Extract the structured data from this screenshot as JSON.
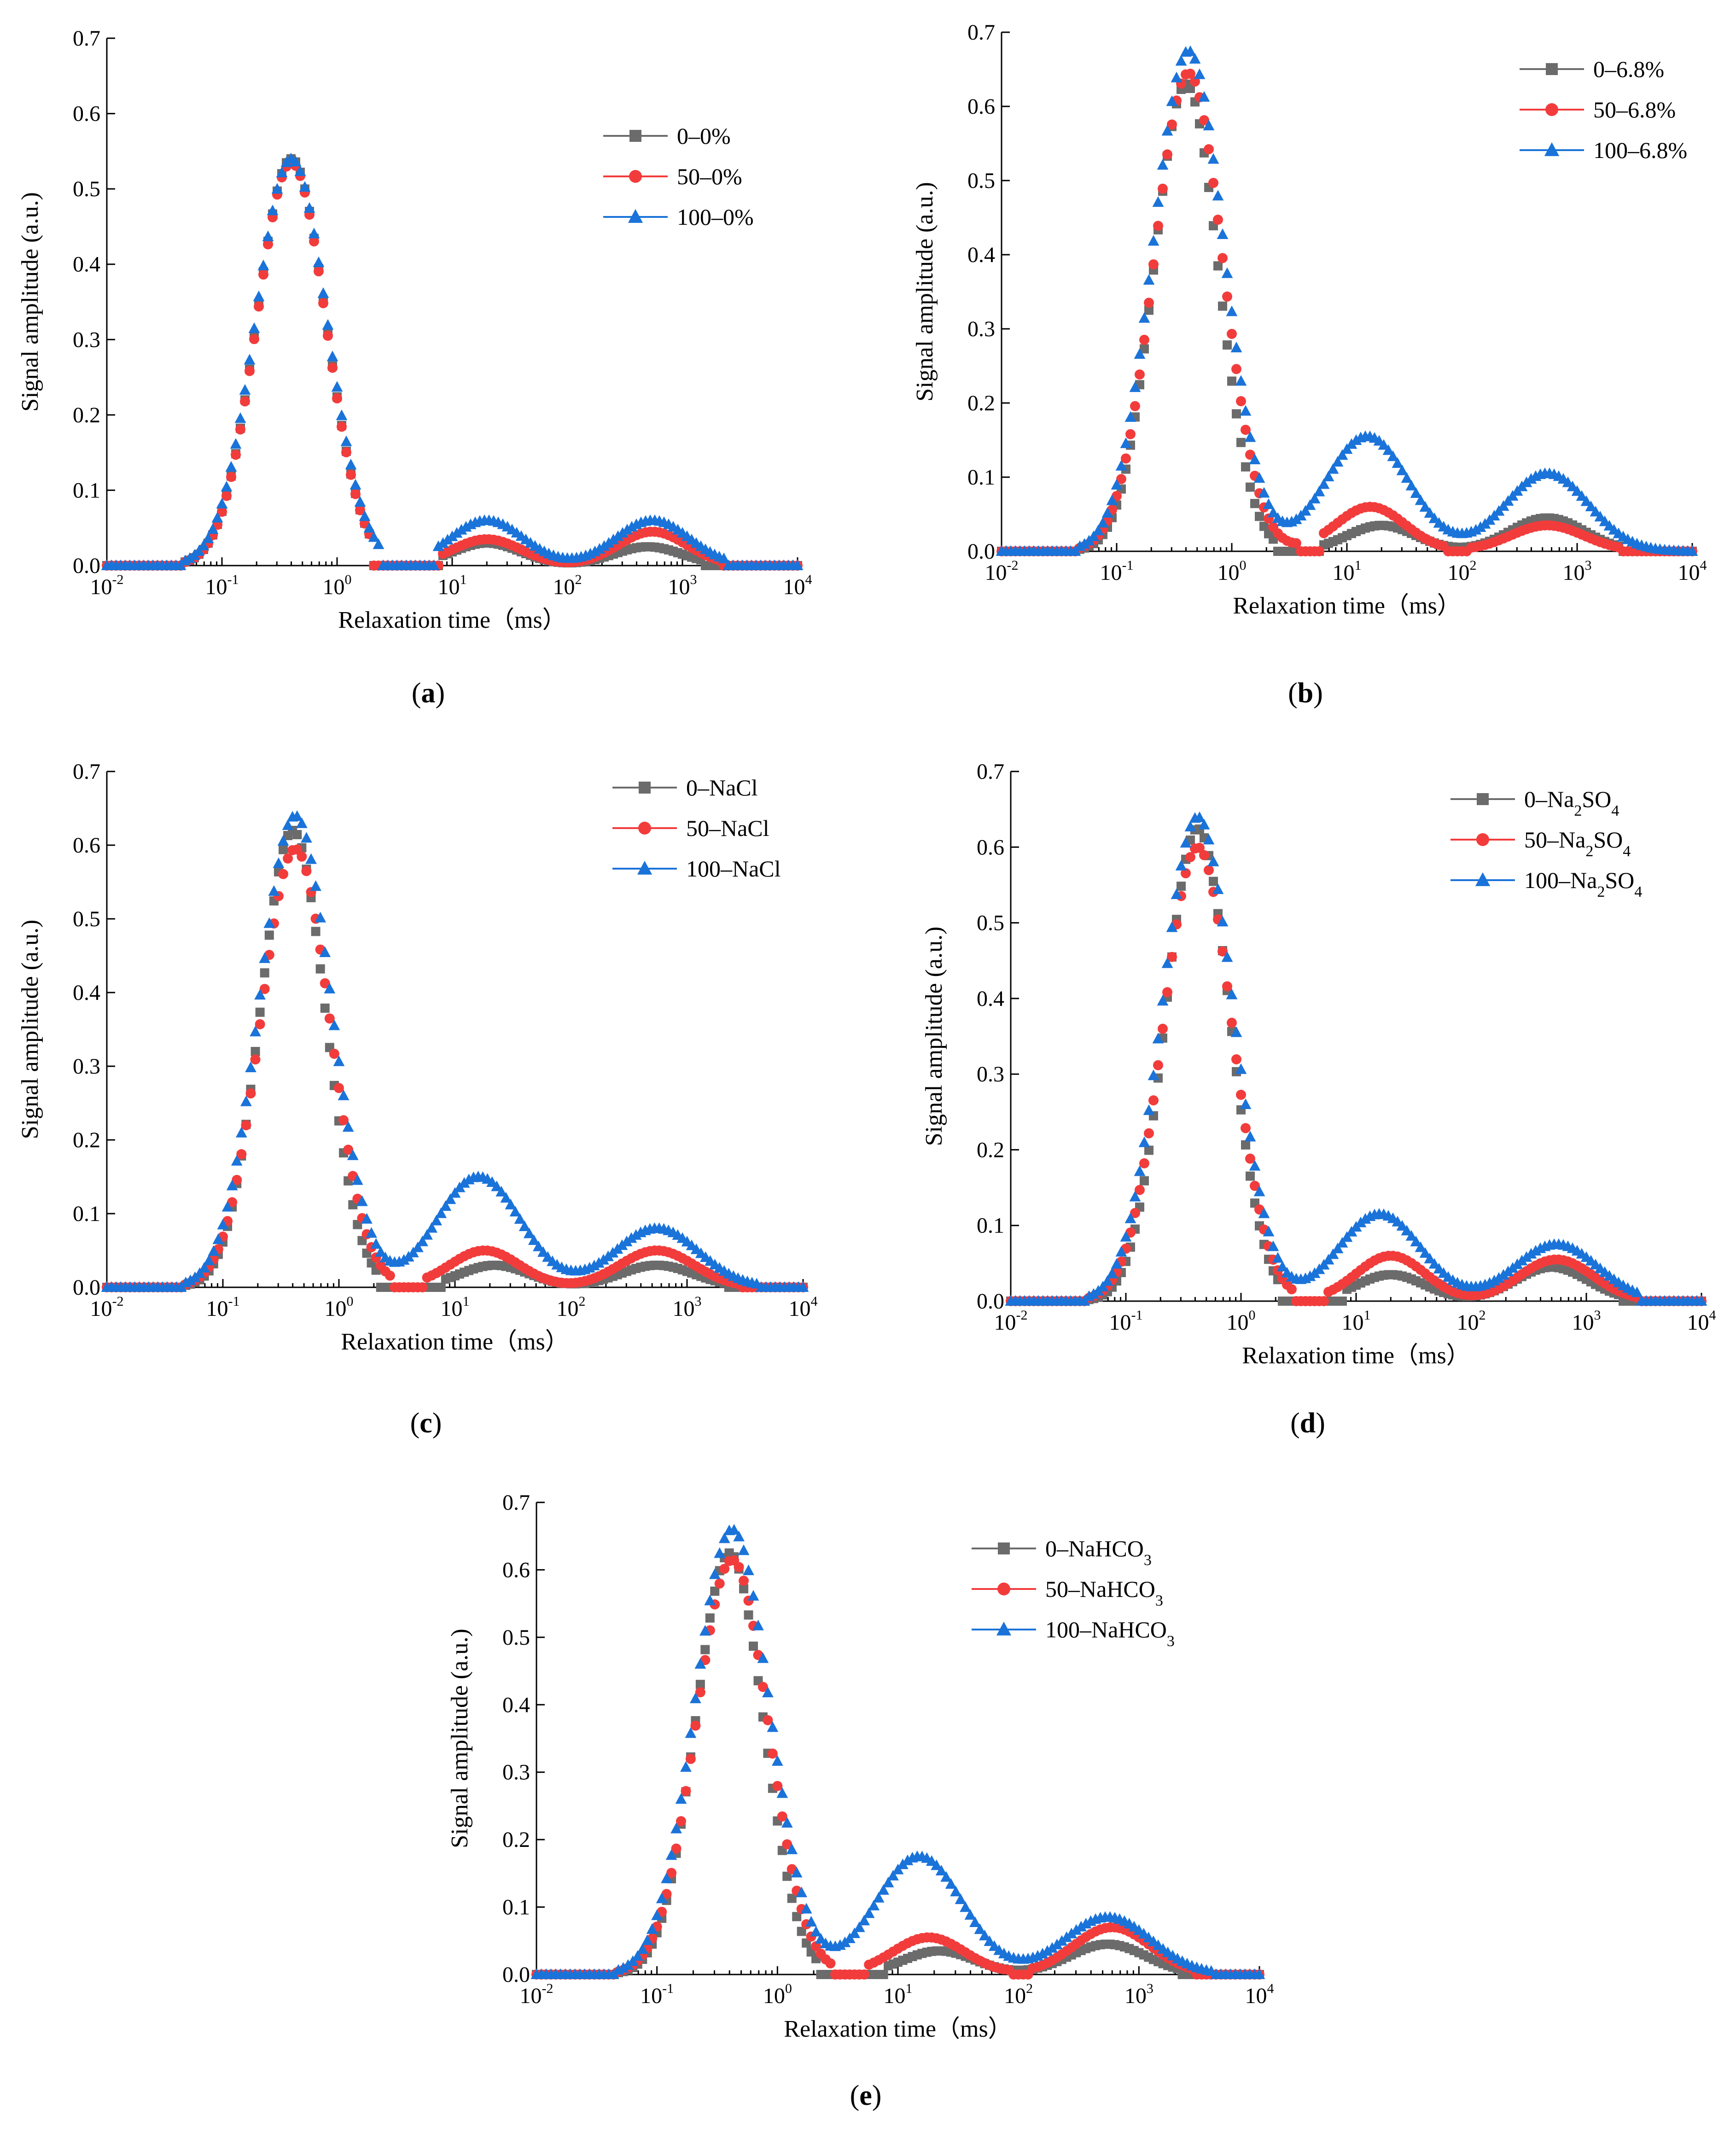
{
  "figure": {
    "xlabel": "Relaxation time（ms）",
    "ylabel": "Signal amplitude (a.u.)",
    "colors": {
      "s0": "#6b6b6b",
      "s50": "#f23c3c",
      "s100": "#1a73d9"
    },
    "markers": {
      "s0": "square",
      "s50": "circle",
      "s100": "triangle"
    }
  },
  "chart_data": [
    {
      "type": "scatter",
      "panel": "(a)",
      "panel_letter": "a",
      "x_scale": "log",
      "xlim": [
        0.01,
        10000
      ],
      "x_ticks": [
        {
          "base": "10",
          "exp": "-2"
        },
        {
          "base": "10",
          "exp": "-1"
        },
        {
          "base": "10",
          "exp": "0"
        },
        {
          "base": "10",
          "exp": "1"
        },
        {
          "base": "10",
          "exp": "2"
        },
        {
          "base": "10",
          "exp": "3"
        },
        {
          "base": "10",
          "exp": "4"
        }
      ],
      "ylim": [
        0,
        0.7
      ],
      "y_ticks": [
        "0.0",
        "0.1",
        "0.2",
        "0.3",
        "0.4",
        "0.5",
        "0.6",
        "0.7"
      ],
      "xlabel": "Relaxation time（ms）",
      "ylabel": "Signal amplitude (a.u.)",
      "legend_position": "top-right",
      "series": [
        {
          "name": "0–0%",
          "name_main": "0–0%",
          "name_sub": "",
          "name_tail": "",
          "color": "#6b6b6b",
          "marker": "square",
          "peaks": [
            {
              "center": 0.4,
              "amp": 0.54,
              "w": 0.3
            },
            {
              "center": 20,
              "amp": 0.03,
              "w": 0.3
            },
            {
              "center": 500,
              "amp": 0.025,
              "w": 0.3
            }
          ],
          "lo": 0.045,
          "hi": 1500,
          "cuts": [
            [
              2.0,
              8
            ]
          ]
        },
        {
          "name": "50–0%",
          "name_main": "50–0%",
          "name_sub": "",
          "name_tail": "",
          "color": "#f23c3c",
          "marker": "circle",
          "peaks": [
            {
              "center": 0.4,
              "amp": 0.535,
              "w": 0.3
            },
            {
              "center": 20,
              "amp": 0.035,
              "w": 0.3
            },
            {
              "center": 550,
              "amp": 0.045,
              "w": 0.3
            }
          ],
          "lo": 0.045,
          "hi": 2200,
          "cuts": [
            [
              2.0,
              8
            ]
          ]
        },
        {
          "name": "100–0%",
          "name_main": "100–0%",
          "name_sub": "",
          "name_tail": "",
          "color": "#1a73d9",
          "marker": "triangle",
          "peaks": [
            {
              "center": 0.4,
              "amp": 0.54,
              "w": 0.31
            },
            {
              "center": 20,
              "amp": 0.06,
              "w": 0.32
            },
            {
              "center": 550,
              "amp": 0.06,
              "w": 0.32
            }
          ],
          "lo": 0.045,
          "hi": 2500,
          "cuts": [
            [
              2.4,
              7
            ]
          ]
        }
      ]
    },
    {
      "type": "scatter",
      "panel": "(b)",
      "panel_letter": "b",
      "x_scale": "log",
      "xlim": [
        0.01,
        10000
      ],
      "x_ticks": [
        {
          "base": "10",
          "exp": "-2"
        },
        {
          "base": "10",
          "exp": "-1"
        },
        {
          "base": "10",
          "exp": "0"
        },
        {
          "base": "10",
          "exp": "1"
        },
        {
          "base": "10",
          "exp": "2"
        },
        {
          "base": "10",
          "exp": "3"
        },
        {
          "base": "10",
          "exp": "4"
        }
      ],
      "ylim": [
        0,
        0.7
      ],
      "y_ticks": [
        "0.0",
        "0.1",
        "0.2",
        "0.3",
        "0.4",
        "0.5",
        "0.6",
        "0.7"
      ],
      "xlabel": "Relaxation time（ms）",
      "ylabel": "Signal amplitude (a.u.)",
      "legend_position": "top-right",
      "series": [
        {
          "name": "0–6.8%",
          "name_main": "0–6.8%",
          "name_sub": "",
          "name_tail": "",
          "color": "#6b6b6b",
          "marker": "square",
          "peaks": [
            {
              "center": 0.4,
              "amp": 0.63,
              "w": 0.28
            },
            {
              "center": 20,
              "amp": 0.035,
              "w": 0.3
            },
            {
              "center": 550,
              "amp": 0.045,
              "w": 0.32
            }
          ],
          "lo": 0.045,
          "hi": 2500,
          "cuts": [
            [
              2.3,
              6
            ]
          ]
        },
        {
          "name": "50–6.8%",
          "name_main": "50–6.8%",
          "name_sub": "",
          "name_tail": "",
          "color": "#f23c3c",
          "marker": "circle",
          "peaks": [
            {
              "center": 0.42,
              "amp": 0.645,
              "w": 0.3
            },
            {
              "center": 16,
              "amp": 0.06,
              "w": 0.3
            },
            {
              "center": 550,
              "amp": 0.035,
              "w": 0.32
            }
          ],
          "lo": 0.045,
          "hi": 2500,
          "cuts": [
            [
              3.8,
              6
            ],
            [
              70,
              120
            ]
          ]
        },
        {
          "name": "100–6.8%",
          "name_main": "100–6.8%",
          "name_sub": "",
          "name_tail": "",
          "color": "#1a73d9",
          "marker": "triangle",
          "peaks": [
            {
              "center": 0.42,
              "amp": 0.675,
              "w": 0.31
            },
            {
              "center": 15,
              "amp": 0.155,
              "w": 0.36
            },
            {
              "center": 550,
              "amp": 0.105,
              "w": 0.36
            }
          ],
          "lo": 0.045,
          "hi": 9000,
          "cuts": []
        }
      ]
    },
    {
      "type": "scatter",
      "panel": "(c)",
      "panel_letter": "c",
      "x_scale": "log",
      "xlim": [
        0.01,
        10000
      ],
      "x_ticks": [
        {
          "base": "10",
          "exp": "-2"
        },
        {
          "base": "10",
          "exp": "-1"
        },
        {
          "base": "10",
          "exp": "0"
        },
        {
          "base": "10",
          "exp": "1"
        },
        {
          "base": "10",
          "exp": "2"
        },
        {
          "base": "10",
          "exp": "3"
        },
        {
          "base": "10",
          "exp": "4"
        }
      ],
      "ylim": [
        0,
        0.7
      ],
      "y_ticks": [
        "0.0",
        "0.1",
        "0.2",
        "0.3",
        "0.4",
        "0.5",
        "0.6",
        "0.7"
      ],
      "xlabel": "Relaxation time（ms）",
      "ylabel": "Signal amplitude (a.u.)",
      "legend_position": "top-right",
      "series": [
        {
          "name": "0–NaCl",
          "name_main": "0–NaCl",
          "name_sub": "",
          "name_tail": "",
          "color": "#6b6b6b",
          "marker": "square",
          "peaks": [
            {
              "center": 0.4,
              "amp": 0.62,
              "w": 0.28
            },
            {
              "center": 22,
              "amp": 0.03,
              "w": 0.3
            },
            {
              "center": 550,
              "amp": 0.03,
              "w": 0.32
            }
          ],
          "lo": 0.045,
          "hi": 2200,
          "cuts": [
            [
              2.2,
              8
            ]
          ]
        },
        {
          "name": "50–NaCl",
          "name_main": "50–NaCl",
          "name_sub": "",
          "name_tail": "",
          "color": "#f23c3c",
          "marker": "circle",
          "peaks": [
            {
              "center": 0.42,
              "amp": 0.595,
              "w": 0.3
            },
            {
              "center": 18,
              "amp": 0.05,
              "w": 0.3
            },
            {
              "center": 550,
              "amp": 0.05,
              "w": 0.32
            }
          ],
          "lo": 0.045,
          "hi": 2800,
          "cuts": [
            [
              2.8,
              5.5
            ]
          ]
        },
        {
          "name": "100–NaCl",
          "name_main": "100–NaCl",
          "name_sub": "",
          "name_tail": "",
          "color": "#1a73d9",
          "marker": "triangle",
          "peaks": [
            {
              "center": 0.42,
              "amp": 0.64,
              "w": 0.31
            },
            {
              "center": 16,
              "amp": 0.15,
              "w": 0.36
            },
            {
              "center": 550,
              "amp": 0.08,
              "w": 0.36
            }
          ],
          "lo": 0.045,
          "hi": 4000,
          "cuts": []
        }
      ]
    },
    {
      "type": "scatter",
      "panel": "(d)",
      "panel_letter": "d",
      "x_scale": "log",
      "xlim": [
        0.01,
        10000
      ],
      "x_ticks": [
        {
          "base": "10",
          "exp": "-2"
        },
        {
          "base": "10",
          "exp": "-1"
        },
        {
          "base": "10",
          "exp": "0"
        },
        {
          "base": "10",
          "exp": "1"
        },
        {
          "base": "10",
          "exp": "2"
        },
        {
          "base": "10",
          "exp": "3"
        },
        {
          "base": "10",
          "exp": "4"
        }
      ],
      "ylim": [
        0,
        0.7
      ],
      "y_ticks": [
        "0.0",
        "0.1",
        "0.2",
        "0.3",
        "0.4",
        "0.5",
        "0.6",
        "0.7"
      ],
      "xlabel": "Relaxation time（ms）",
      "ylabel": "Signal amplitude (a.u.)",
      "legend_position": "top-right",
      "series": [
        {
          "name": "0–Na2SO4",
          "name_main": "0–Na",
          "name_sub": "2",
          "name_tail": "SO",
          "name_sub2": "4",
          "color": "#6b6b6b",
          "marker": "square",
          "peaks": [
            {
              "center": 0.42,
              "amp": 0.625,
              "w": 0.28
            },
            {
              "center": 20,
              "amp": 0.035,
              "w": 0.3
            },
            {
              "center": 500,
              "amp": 0.045,
              "w": 0.32
            }
          ],
          "lo": 0.045,
          "hi": 2000,
          "cuts": [
            [
              2.2,
              8
            ]
          ]
        },
        {
          "name": "50–Na2SO4",
          "name_main": "50–Na",
          "name_sub": "2",
          "name_tail": "SO",
          "name_sub2": "4",
          "color": "#f23c3c",
          "marker": "circle",
          "peaks": [
            {
              "center": 0.42,
              "amp": 0.6,
              "w": 0.3
            },
            {
              "center": 20,
              "amp": 0.06,
              "w": 0.3
            },
            {
              "center": 550,
              "amp": 0.055,
              "w": 0.32
            }
          ],
          "lo": 0.045,
          "hi": 2800,
          "cuts": [
            [
              2.8,
              5.5
            ]
          ]
        },
        {
          "name": "100–Na2SO4",
          "name_main": "100–Na",
          "name_sub": "2",
          "name_tail": "SO",
          "name_sub2": "4",
          "color": "#1a73d9",
          "marker": "triangle",
          "peaks": [
            {
              "center": 0.42,
              "amp": 0.64,
              "w": 0.31
            },
            {
              "center": 16,
              "amp": 0.115,
              "w": 0.36
            },
            {
              "center": 550,
              "amp": 0.075,
              "w": 0.36
            }
          ],
          "lo": 0.045,
          "hi": 2800,
          "cuts": []
        }
      ]
    },
    {
      "type": "scatter",
      "panel": "(e)",
      "panel_letter": "e",
      "x_scale": "log",
      "xlim": [
        0.01,
        10000
      ],
      "x_ticks": [
        {
          "base": "10",
          "exp": "-2"
        },
        {
          "base": "10",
          "exp": "-1"
        },
        {
          "base": "10",
          "exp": "0"
        },
        {
          "base": "10",
          "exp": "1"
        },
        {
          "base": "10",
          "exp": "2"
        },
        {
          "base": "10",
          "exp": "3"
        },
        {
          "base": "10",
          "exp": "4"
        }
      ],
      "ylim": [
        0,
        0.7
      ],
      "y_ticks": [
        "0.0",
        "0.1",
        "0.2",
        "0.3",
        "0.4",
        "0.5",
        "0.6",
        "0.7"
      ],
      "xlabel": "Relaxation time（ms）",
      "ylabel": "Signal amplitude (a.u.)",
      "legend_position": "top-right",
      "series": [
        {
          "name": "0–NaHCO3",
          "name_main": "0–NaHCO",
          "name_sub": "3",
          "name_tail": "",
          "color": "#6b6b6b",
          "marker": "square",
          "peaks": [
            {
              "center": 0.4,
              "amp": 0.625,
              "w": 0.28
            },
            {
              "center": 22,
              "amp": 0.035,
              "w": 0.3
            },
            {
              "center": 550,
              "amp": 0.045,
              "w": 0.32
            }
          ],
          "lo": 0.045,
          "hi": 2200,
          "cuts": [
            [
              2.2,
              8
            ]
          ]
        },
        {
          "name": "50–NaHCO3",
          "name_main": "50–NaHCO",
          "name_sub": "3",
          "name_tail": "",
          "color": "#f23c3c",
          "marker": "circle",
          "peaks": [
            {
              "center": 0.42,
              "amp": 0.615,
              "w": 0.3
            },
            {
              "center": 18,
              "amp": 0.055,
              "w": 0.3
            },
            {
              "center": 600,
              "amp": 0.07,
              "w": 0.32
            }
          ],
          "lo": 0.045,
          "hi": 3000,
          "cuts": [
            [
              2.8,
              5.5
            ],
            [
              90,
              130
            ]
          ]
        },
        {
          "name": "100–NaHCO3",
          "name_main": "100–NaHCO",
          "name_sub": "3",
          "name_tail": "",
          "color": "#1a73d9",
          "marker": "triangle",
          "peaks": [
            {
              "center": 0.42,
              "amp": 0.66,
              "w": 0.31
            },
            {
              "center": 15,
              "amp": 0.175,
              "w": 0.36
            },
            {
              "center": 550,
              "amp": 0.085,
              "w": 0.36
            }
          ],
          "lo": 0.045,
          "hi": 4000,
          "cuts": []
        }
      ]
    }
  ]
}
